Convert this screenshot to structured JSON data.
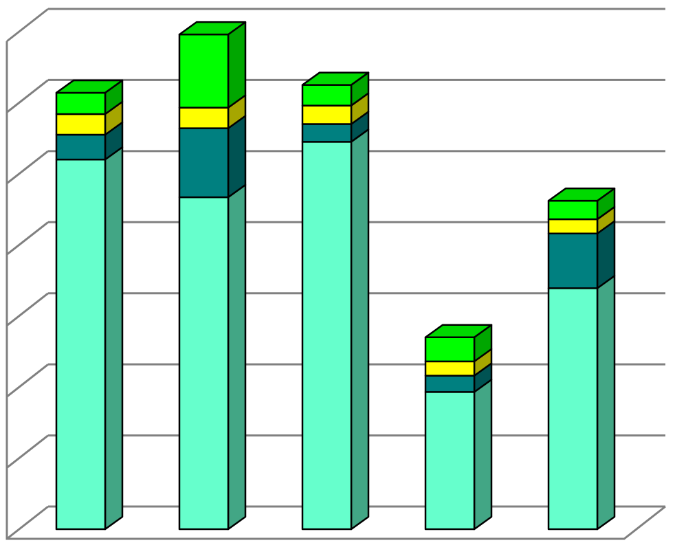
{
  "chart_data": {
    "type": "bar3d_stacked",
    "categories": [
      null,
      null,
      null,
      null,
      null
    ],
    "series": [
      {
        "color": "#66ffcc",
        "values": [
          5.2,
          4.67,
          5.45,
          1.93,
          3.39
        ]
      },
      {
        "color": "#008080",
        "values": [
          0.35,
          0.97,
          0.25,
          0.23,
          0.77
        ]
      },
      {
        "color": "#ffff00",
        "values": [
          0.29,
          0.29,
          0.26,
          0.2,
          0.2
        ]
      },
      {
        "color": "#00ff00",
        "values": [
          0.3,
          1.03,
          0.29,
          0.34,
          0.26
        ]
      }
    ],
    "ylim": [
      0,
      7
    ],
    "yticks": [
      0,
      1,
      2,
      3,
      4,
      5,
      6,
      7
    ],
    "grid": true
  }
}
